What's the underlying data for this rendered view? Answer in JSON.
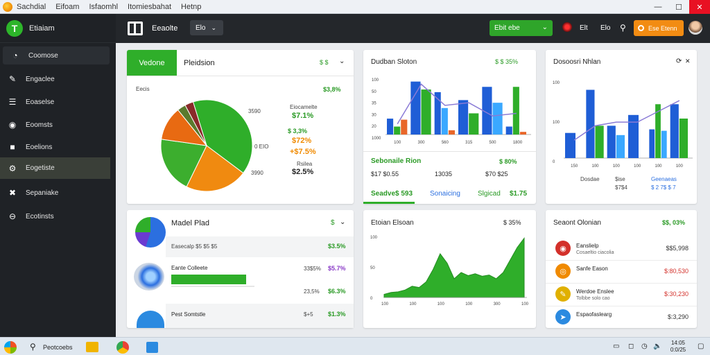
{
  "window": {
    "menu": [
      "Sachdial",
      "Eifoam",
      "Isfaomhl",
      "Itomiesbahat",
      "Hetnp"
    ]
  },
  "sidebar": {
    "title": "Etiaiam",
    "items": [
      {
        "label": "Coomose",
        "icon": "gauge-icon"
      },
      {
        "label": "Engaclee",
        "icon": "pencil-icon"
      },
      {
        "label": "Eoaselse",
        "icon": "list-icon"
      },
      {
        "label": "Eoomsts",
        "icon": "target-icon"
      },
      {
        "label": "Eoelions",
        "icon": "square-icon"
      },
      {
        "label": "Eogetiste",
        "icon": "gear-icon"
      },
      {
        "label": "Sepaniake",
        "icon": "tools-icon"
      },
      {
        "label": "Ecotinsts",
        "icon": "minus-circle-icon"
      }
    ]
  },
  "topbar": {
    "title": "Eeaolte",
    "dropdown": "Elo",
    "green_button": "Ebit ebe",
    "txt1": "Elt",
    "txt2": "Elo",
    "orange_button": "Ese Etenn"
  },
  "card1": {
    "tab_active": "Vedone",
    "tab_inactive": "Pleidsion",
    "header_icons": "$ $",
    "subtitle": "Eecis",
    "pie_label_left": "3590",
    "pie_label_mid": "0 EIO",
    "pie_label_bottom": "3990",
    "legend": [
      {
        "pct": "$3,8%",
        "color": "green"
      },
      {
        "label": "Eiocamelte",
        "pct": "$7.1%",
        "color": "green"
      },
      {
        "pct": "$ 3,3%",
        "color": "green"
      },
      {
        "pct": "$72%",
        "color": "orange"
      },
      {
        "pct": "+$7.5%",
        "color": "orange"
      },
      {
        "label": "Rsilea",
        "pct": "$2.5%",
        "color": "dark"
      }
    ],
    "pie_chart_data": {
      "type": "pie",
      "slices": [
        {
          "value": 40,
          "color": "#2fae2a"
        },
        {
          "value": 22,
          "color": "#f08a10"
        },
        {
          "value": 20,
          "color": "#3cae2e"
        },
        {
          "value": 12,
          "color": "#e86a12"
        },
        {
          "value": 3,
          "color": "#5a7a2e"
        },
        {
          "value": 3,
          "color": "#8a2a2a"
        }
      ]
    }
  },
  "card2": {
    "title": "Dudban Sloton",
    "header": "$ $ 35%",
    "yticks": [
      "100",
      "50",
      "35",
      "30",
      "20",
      "1000"
    ],
    "xticks": [
      "100",
      "300",
      "560",
      "315",
      "500",
      "1800"
    ],
    "stat_title": "Sebonaile Rion",
    "stat_pct": "$ 80%",
    "row2": [
      "$17 $0.55",
      "13035",
      "$70 $25"
    ],
    "tabs": [
      "Seadve$ 593",
      "Sonaicing",
      "Slgicad",
      "$1.75"
    ]
  },
  "card3": {
    "title": "Dosoosri Nhlan",
    "yticks": [
      "100",
      "100",
      "0"
    ],
    "xticks": [
      "150",
      "100",
      "100",
      "100",
      "100",
      "100"
    ],
    "legend_row1": [
      "Dosdae",
      "$ise",
      "Geenaeas"
    ],
    "legend_row2": [
      "$7$4",
      "$ 2 7$ $ 7"
    ]
  },
  "card4": {
    "title": "Madel Plad",
    "header": "$",
    "items": [
      {
        "label": "Easecalp $5 $5 $5",
        "pct": "$3.5%",
        "pct_color": "green"
      },
      {
        "label": "Eante Colleete",
        "mid": "33$5%",
        "pct": "$5.7%",
        "pct_color": "purple"
      },
      {
        "label": "",
        "mid": "23,5%",
        "pct": "$6.3%",
        "pct_color": "green"
      },
      {
        "label": "Pest Somtstle",
        "mid": "$+5",
        "pct": "$1.3%",
        "pct_color": "green"
      }
    ]
  },
  "card5": {
    "title": "Etoian Elsoan",
    "header": "$ 35%",
    "yticks": [
      "100",
      "50",
      "0"
    ],
    "xticks": [
      "100",
      "100",
      "100",
      "100",
      "300",
      "100"
    ]
  },
  "card6": {
    "title": "Seaont Olonian",
    "pct": "$$, 03%",
    "rows": [
      {
        "label": "Eanslielp",
        "sub": "Cosaeltio ciacolia",
        "value": "$$5,998",
        "color": "dark",
        "icon_color": "#d3302a"
      },
      {
        "label": "Sanfe Eason",
        "sub": "",
        "value": "$:80,530",
        "color": "red",
        "icon_color": "#f08a00"
      },
      {
        "label": "Werdoe Enslee",
        "sub": "Tolbbe solo cao",
        "value": "$:30,230",
        "color": "red",
        "icon_color": "#e0b000"
      },
      {
        "label": "Espaofaslearg",
        "sub": "",
        "value": "$:3,290",
        "color": "dark",
        "icon_color": "#2b8ae0"
      }
    ]
  },
  "chart_data": [
    {
      "type": "bar",
      "name": "card2",
      "categories": [
        "100",
        "300",
        "560",
        "315",
        "500",
        "1800"
      ],
      "series": [
        {
          "color": "#1f5ed6",
          "values": [
            30,
            100,
            80,
            65,
            90,
            15
          ]
        },
        {
          "color": "#3aa8ff",
          "values": [
            0,
            0,
            50,
            0,
            60,
            0
          ]
        },
        {
          "color": "#2fae2a",
          "values": [
            15,
            85,
            0,
            40,
            0,
            90
          ]
        },
        {
          "color": "#e8672a",
          "values": [
            28,
            0,
            8,
            0,
            0,
            5
          ]
        }
      ],
      "line": [
        20,
        95,
        55,
        60,
        35,
        40
      ],
      "ylim": [
        0,
        110
      ]
    },
    {
      "type": "bar",
      "name": "card3",
      "categories": [
        "150",
        "100",
        "100",
        "100",
        "100",
        "100"
      ],
      "series": [
        {
          "color": "#1f5ed6",
          "values": [
            35,
            95,
            45,
            60,
            40,
            75
          ]
        },
        {
          "color": "#2fae2a",
          "values": [
            0,
            45,
            0,
            0,
            75,
            55
          ]
        },
        {
          "color": "#3aa8ff",
          "values": [
            0,
            0,
            32,
            0,
            38,
            0
          ]
        }
      ],
      "line": [
        25,
        45,
        50,
        50,
        65,
        80
      ],
      "ylim": [
        0,
        110
      ]
    },
    {
      "type": "area",
      "name": "card5",
      "x": [
        0,
        1,
        2,
        3,
        4,
        5,
        6,
        7,
        8,
        9,
        10,
        11,
        12,
        13,
        14,
        15,
        16,
        17,
        18,
        19,
        20
      ],
      "y": [
        5,
        8,
        9,
        12,
        18,
        16,
        25,
        45,
        70,
        55,
        30,
        40,
        35,
        38,
        34,
        36,
        30,
        40,
        60,
        80,
        95
      ],
      "ylim": [
        0,
        100
      ]
    }
  ],
  "taskbar": {
    "search": "Peotcoebs",
    "clock": "14:05 0:0/25"
  }
}
